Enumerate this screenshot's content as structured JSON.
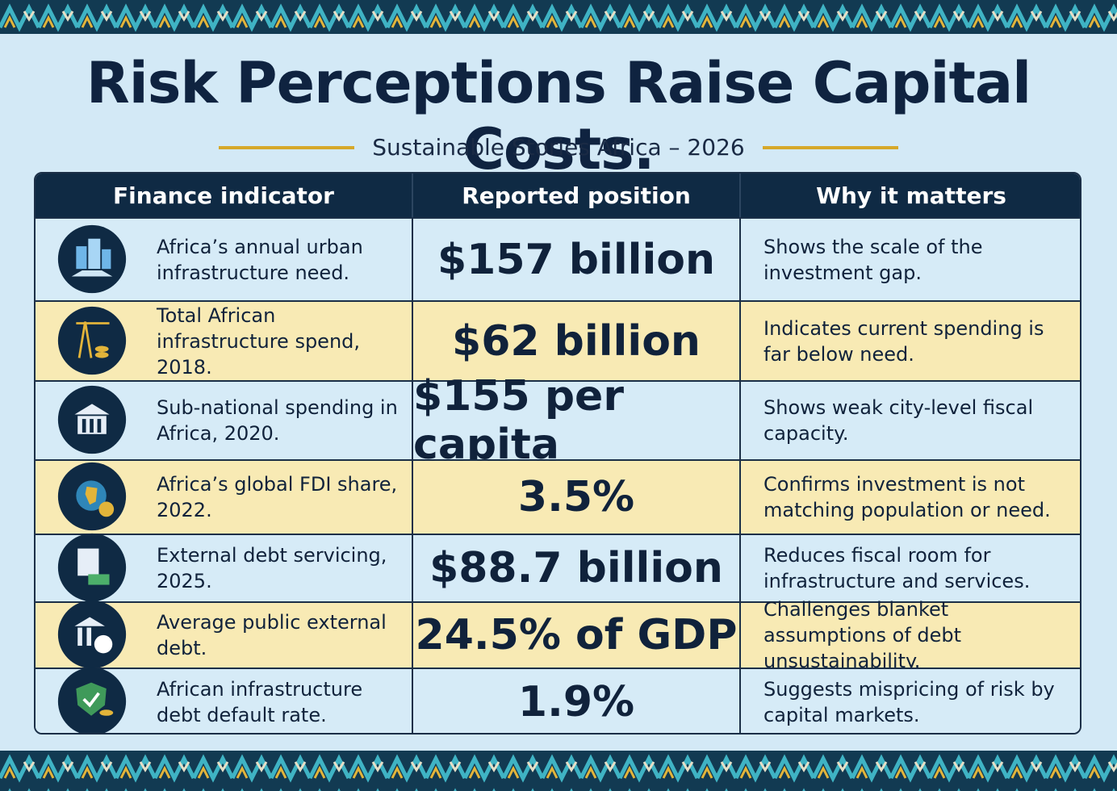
{
  "header": {
    "title": "Risk Perceptions Raise Capital Costs.",
    "subtitle": "Sustainable Stories Africa – 2026"
  },
  "table": {
    "columns": [
      "Finance indicator",
      "Reported position",
      "Why it matters"
    ],
    "rows": [
      [
        "Africa’s annual urban infrastructure need.",
        "$157 billion",
        "Shows the scale of the investment gap."
      ],
      [
        "Total African infrastructure spend, 2018.",
        "$62 billion",
        "Indicates current spending is far below need."
      ],
      [
        "Sub-national spending in Africa, 2020.",
        "$155 per capita",
        "Shows weak city-level fiscal capacity."
      ],
      [
        "Africa’s global FDI share, 2022.",
        "3.5%",
        "Confirms investment is not matching population or need."
      ],
      [
        "External debt servicing, 2025.",
        "$88.7 billion",
        "Reduces fiscal room for infrastructure and services."
      ],
      [
        "Average public external debt.",
        "24.5% of GDP",
        "Challenges blanket assumptions of debt unsustainability."
      ],
      [
        "African infrastructure debt default rate.",
        "1.9%",
        "Suggests mispricing of risk by capital markets."
      ]
    ]
  }
}
